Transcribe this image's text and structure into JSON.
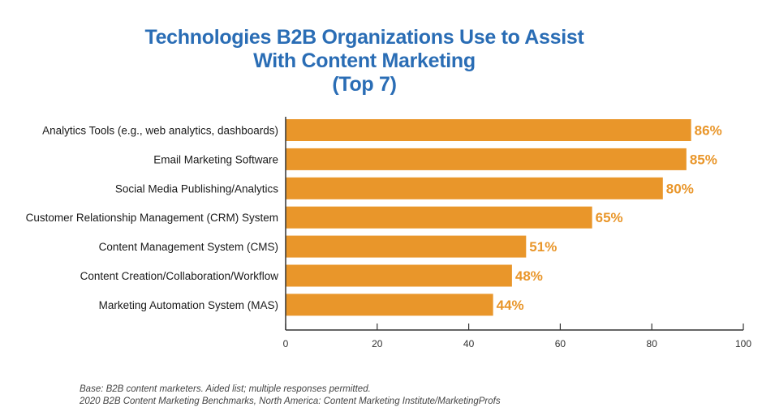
{
  "chart_data": {
    "type": "bar",
    "orientation": "horizontal",
    "title_lines": [
      "Technologies B2B Organizations Use to Assist",
      "With Content Marketing",
      "(Top 7)"
    ],
    "categories": [
      "Analytics Tools (e.g., web analytics, dashboards)",
      "Email Marketing Software",
      "Social Media Publishing/Analytics",
      "Customer Relationship Management (CRM) System",
      "Content Management System (CMS)",
      "Content Creation/Collaboration/Workflow",
      "Marketing Automation System (MAS)"
    ],
    "values": [
      86,
      85,
      80,
      65,
      51,
      48,
      44
    ],
    "data_labels": [
      "86%",
      "85%",
      "80%",
      "65%",
      "51%",
      "48%",
      "44%"
    ],
    "xlim": [
      0,
      100
    ],
    "xticks": [
      0,
      20,
      40,
      60,
      80,
      100
    ],
    "grid": false,
    "bar_color": "#e9962a",
    "label_color": "#e9962a",
    "title_color": "#2a6db5"
  },
  "footnotes": [
    "Base: B2B content marketers. Aided list; multiple responses permitted.",
    "2020 B2B Content Marketing Benchmarks, North America: Content Marketing Institute/MarketingProfs"
  ]
}
